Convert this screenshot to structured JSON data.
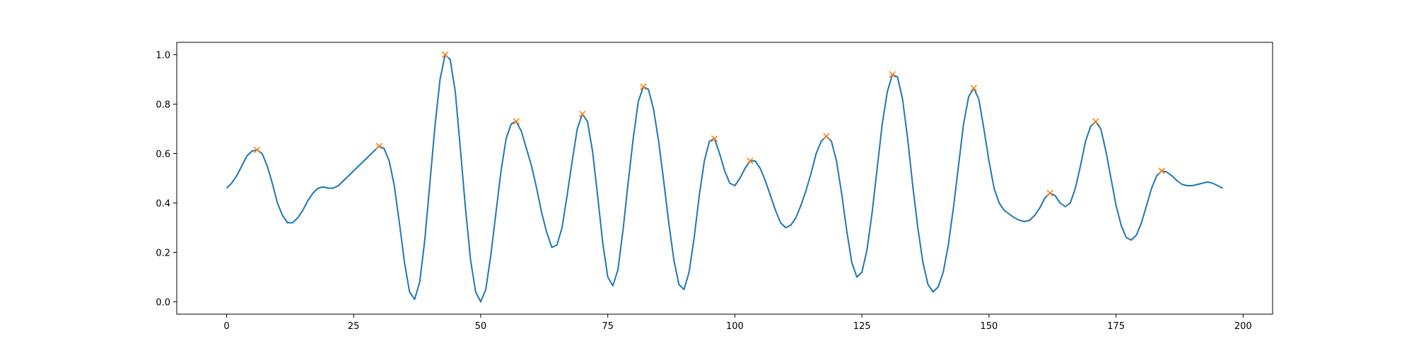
{
  "chart_data": {
    "type": "line",
    "x": [
      0,
      1,
      2,
      3,
      4,
      5,
      6,
      7,
      8,
      9,
      10,
      11,
      12,
      13,
      14,
      15,
      16,
      17,
      18,
      19,
      20,
      21,
      22,
      23,
      24,
      25,
      26,
      27,
      28,
      29,
      30,
      31,
      32,
      33,
      34,
      35,
      36,
      37,
      38,
      39,
      40,
      41,
      42,
      43,
      44,
      45,
      46,
      47,
      48,
      49,
      50,
      51,
      52,
      53,
      54,
      55,
      56,
      57,
      58,
      59,
      60,
      61,
      62,
      63,
      64,
      65,
      66,
      67,
      68,
      69,
      70,
      71,
      72,
      73,
      74,
      75,
      76,
      77,
      78,
      79,
      80,
      81,
      82,
      83,
      84,
      85,
      86,
      87,
      88,
      89,
      90,
      91,
      92,
      93,
      94,
      95,
      96,
      97,
      98,
      99,
      100,
      101,
      102,
      103,
      104,
      105,
      106,
      107,
      108,
      109,
      110,
      111,
      112,
      113,
      114,
      115,
      116,
      117,
      118,
      119,
      120,
      121,
      122,
      123,
      124,
      125,
      126,
      127,
      128,
      129,
      130,
      131,
      132,
      133,
      134,
      135,
      136,
      137,
      138,
      139,
      140,
      141,
      142,
      143,
      144,
      145,
      146,
      147,
      148,
      149,
      150,
      151,
      152,
      153,
      154,
      155,
      156,
      157,
      158,
      159,
      160,
      161,
      162,
      163,
      164,
      165,
      166,
      167,
      168,
      169,
      170,
      171,
      172,
      173,
      174,
      175,
      176,
      177,
      178,
      179,
      180,
      181,
      182,
      183,
      184,
      185,
      186,
      187,
      188,
      189,
      190,
      191,
      192,
      193,
      194,
      195,
      196
    ],
    "series": [
      {
        "color": "#1f77b4",
        "values": [
          0.46,
          0.48,
          0.51,
          0.55,
          0.59,
          0.61,
          0.615,
          0.6,
          0.55,
          0.48,
          0.4,
          0.35,
          0.32,
          0.32,
          0.34,
          0.37,
          0.41,
          0.44,
          0.46,
          0.465,
          0.46,
          0.46,
          0.47,
          0.49,
          0.51,
          0.53,
          0.55,
          0.57,
          0.59,
          0.61,
          0.63,
          0.62,
          0.57,
          0.47,
          0.32,
          0.16,
          0.04,
          0.01,
          0.08,
          0.25,
          0.48,
          0.71,
          0.9,
          1.0,
          0.98,
          0.85,
          0.62,
          0.38,
          0.17,
          0.04,
          0.0,
          0.05,
          0.19,
          0.36,
          0.53,
          0.66,
          0.72,
          0.73,
          0.69,
          0.62,
          0.55,
          0.46,
          0.36,
          0.28,
          0.22,
          0.23,
          0.3,
          0.43,
          0.57,
          0.7,
          0.76,
          0.73,
          0.61,
          0.43,
          0.24,
          0.1,
          0.065,
          0.13,
          0.29,
          0.48,
          0.66,
          0.81,
          0.87,
          0.86,
          0.78,
          0.65,
          0.49,
          0.32,
          0.17,
          0.07,
          0.05,
          0.12,
          0.26,
          0.43,
          0.57,
          0.65,
          0.66,
          0.6,
          0.53,
          0.48,
          0.47,
          0.5,
          0.54,
          0.57,
          0.57,
          0.54,
          0.49,
          0.43,
          0.37,
          0.32,
          0.3,
          0.31,
          0.34,
          0.39,
          0.45,
          0.52,
          0.6,
          0.65,
          0.67,
          0.65,
          0.57,
          0.44,
          0.29,
          0.16,
          0.1,
          0.12,
          0.21,
          0.36,
          0.54,
          0.72,
          0.85,
          0.92,
          0.91,
          0.82,
          0.66,
          0.47,
          0.3,
          0.16,
          0.07,
          0.04,
          0.06,
          0.12,
          0.23,
          0.38,
          0.55,
          0.72,
          0.83,
          0.865,
          0.82,
          0.7,
          0.57,
          0.46,
          0.4,
          0.37,
          0.355,
          0.34,
          0.33,
          0.325,
          0.33,
          0.35,
          0.38,
          0.42,
          0.44,
          0.43,
          0.4,
          0.385,
          0.4,
          0.46,
          0.55,
          0.65,
          0.71,
          0.73,
          0.7,
          0.61,
          0.5,
          0.39,
          0.31,
          0.26,
          0.25,
          0.27,
          0.32,
          0.39,
          0.46,
          0.51,
          0.53,
          0.525,
          0.51,
          0.49,
          0.475,
          0.47,
          0.47,
          0.475,
          0.48,
          0.485,
          0.48,
          0.47,
          0.46
        ]
      }
    ],
    "peaks": {
      "marker": "x",
      "color": "#ff7f0e",
      "x": [
        6,
        30,
        43,
        57,
        70,
        82,
        96,
        103,
        118,
        131,
        147,
        162,
        171,
        184
      ],
      "values": [
        0.615,
        0.63,
        1.0,
        0.73,
        0.76,
        0.87,
        0.66,
        0.57,
        0.67,
        0.92,
        0.865,
        0.44,
        0.73,
        0.53
      ]
    },
    "xlim": [
      -9.8,
      205.8
    ],
    "ylim": [
      -0.05,
      1.05
    ],
    "xticks": [
      0,
      25,
      50,
      75,
      100,
      125,
      150,
      175,
      200
    ],
    "yticks": [
      {
        "value": 0,
        "label": "0.0"
      },
      {
        "value": 0.2,
        "label": "0.2"
      },
      {
        "value": 0.4,
        "label": "0.4"
      },
      {
        "value": 0.6,
        "label": "0.6"
      },
      {
        "value": 0.8,
        "label": "0.8"
      },
      {
        "value": 1,
        "label": "1.0"
      }
    ],
    "grid": false
  }
}
